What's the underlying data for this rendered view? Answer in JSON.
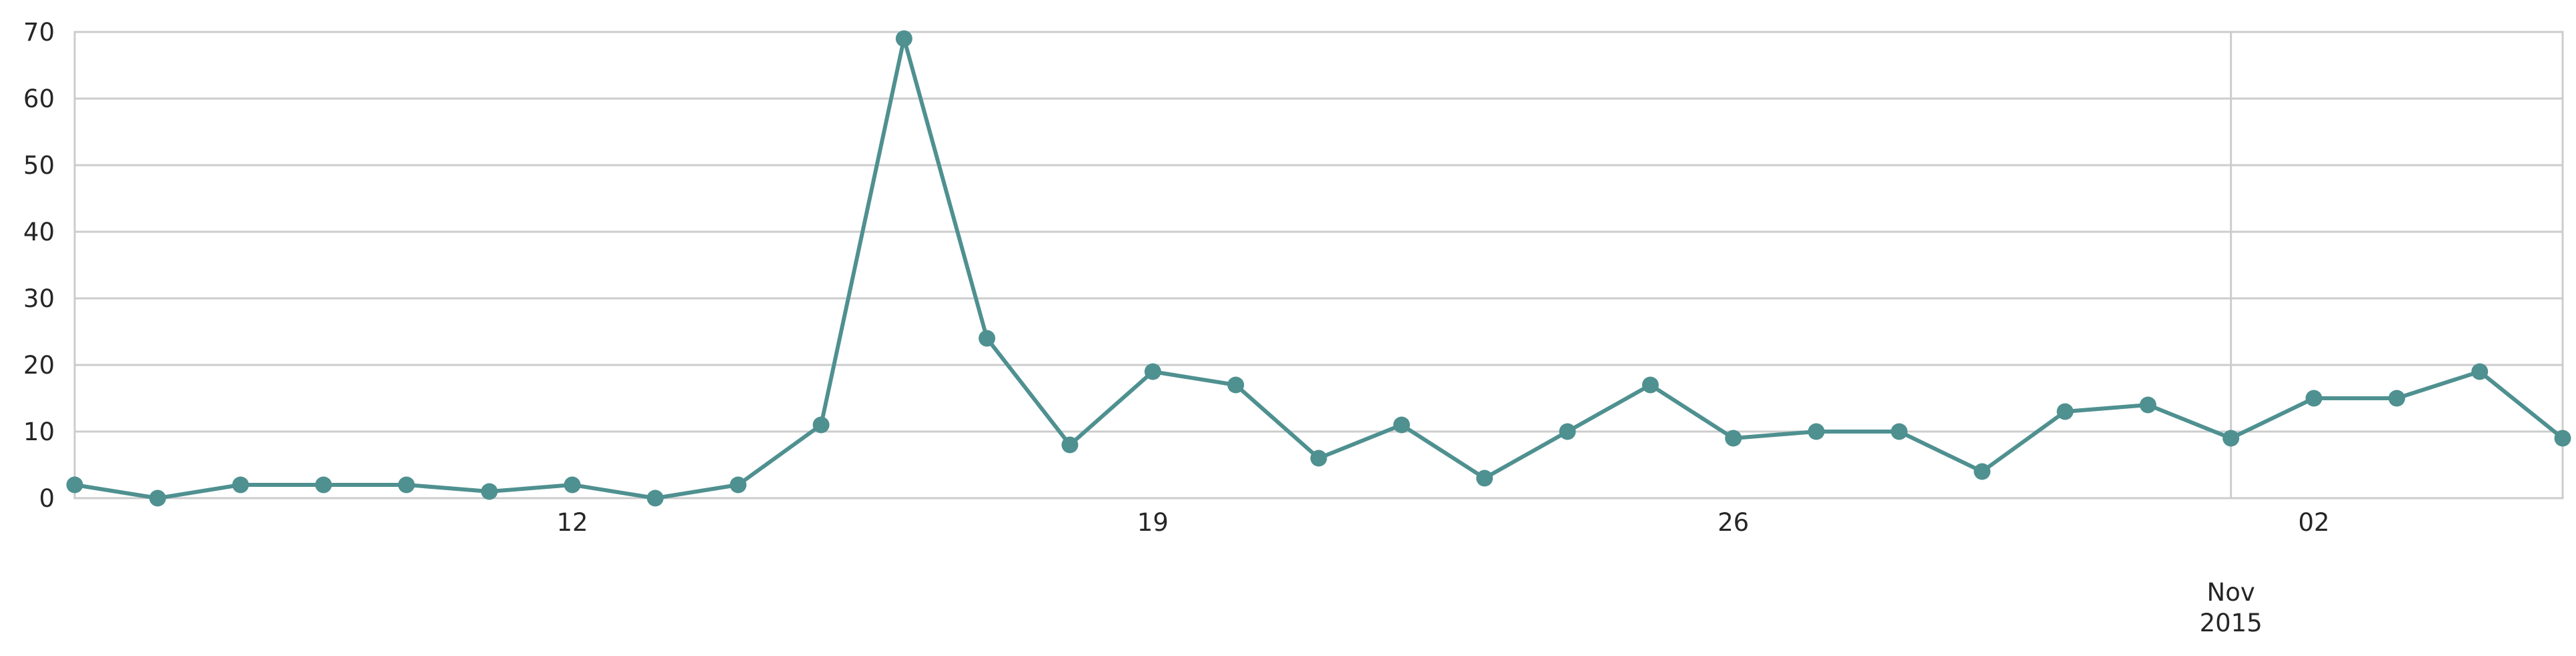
{
  "chart_data": {
    "type": "line",
    "title": "",
    "xlabel": "",
    "ylabel": "",
    "ylim": [
      0,
      70
    ],
    "xlim": [
      "2015-10-06",
      "2015-11-05"
    ],
    "grid": true,
    "y_ticks": [
      "0",
      "10",
      "20",
      "30",
      "40",
      "50",
      "60",
      "70"
    ],
    "x_ticks": [
      {
        "date": "2015-10-12",
        "label": "12"
      },
      {
        "date": "2015-10-19",
        "label": "19"
      },
      {
        "date": "2015-10-26",
        "label": "26"
      },
      {
        "date": "2015-11-02",
        "label": "02"
      }
    ],
    "x_major_label": {
      "date": "2015-11-01",
      "month": "Nov",
      "year": "2015"
    },
    "series": [
      {
        "color": "#4f9090",
        "points": [
          {
            "x": "2015-10-06",
            "y": 2
          },
          {
            "x": "2015-10-07",
            "y": 0
          },
          {
            "x": "2015-10-08",
            "y": 2
          },
          {
            "x": "2015-10-09",
            "y": 2
          },
          {
            "x": "2015-10-10",
            "y": 2
          },
          {
            "x": "2015-10-11",
            "y": 1
          },
          {
            "x": "2015-10-12",
            "y": 2
          },
          {
            "x": "2015-10-13",
            "y": 0
          },
          {
            "x": "2015-10-14",
            "y": 2
          },
          {
            "x": "2015-10-15",
            "y": 11
          },
          {
            "x": "2015-10-16",
            "y": 69
          },
          {
            "x": "2015-10-17",
            "y": 24
          },
          {
            "x": "2015-10-18",
            "y": 8
          },
          {
            "x": "2015-10-19",
            "y": 19
          },
          {
            "x": "2015-10-20",
            "y": 17
          },
          {
            "x": "2015-10-21",
            "y": 6
          },
          {
            "x": "2015-10-22",
            "y": 11
          },
          {
            "x": "2015-10-23",
            "y": 3
          },
          {
            "x": "2015-10-24",
            "y": 10
          },
          {
            "x": "2015-10-25",
            "y": 17
          },
          {
            "x": "2015-10-26",
            "y": 9
          },
          {
            "x": "2015-10-27",
            "y": 10
          },
          {
            "x": "2015-10-28",
            "y": 10
          },
          {
            "x": "2015-10-29",
            "y": 4
          },
          {
            "x": "2015-10-30",
            "y": 13
          },
          {
            "x": "2015-10-31",
            "y": 14
          },
          {
            "x": "2015-11-01",
            "y": 9
          },
          {
            "x": "2015-11-02",
            "y": 15
          },
          {
            "x": "2015-11-03",
            "y": 15
          },
          {
            "x": "2015-11-04",
            "y": 19
          },
          {
            "x": "2015-11-05",
            "y": 9
          }
        ]
      }
    ]
  }
}
